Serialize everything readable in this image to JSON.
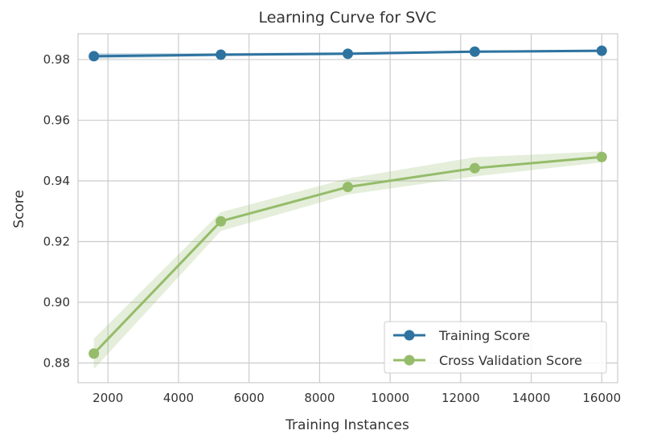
{
  "chart_data": {
    "type": "line",
    "title": "Learning Curve for SVC",
    "xlabel": "Training Instances",
    "ylabel": "Score",
    "xlim": [
      1150,
      16450
    ],
    "ylim": [
      0.8735,
      0.9885
    ],
    "xticks": [
      2000,
      4000,
      6000,
      8000,
      10000,
      12000,
      14000,
      16000
    ],
    "yticks": [
      0.88,
      0.9,
      0.92,
      0.94,
      0.96,
      0.98
    ],
    "ytick_labels": [
      "0.88",
      "0.90",
      "0.92",
      "0.94",
      "0.96",
      "0.98"
    ],
    "x": [
      1600,
      5200,
      8800,
      12400,
      16000
    ],
    "series": [
      {
        "name": "Training Score",
        "color": "#2E73A0",
        "values": [
          0.9811,
          0.9816,
          0.9819,
          0.9826,
          0.9829
        ],
        "band_lower": [
          0.9803,
          0.9811,
          0.9815,
          0.9822,
          0.9824
        ],
        "band_upper": [
          0.9821,
          0.9821,
          0.9825,
          0.983,
          0.9832
        ]
      },
      {
        "name": "Cross Validation Score",
        "color": "#95BC6A",
        "values": [
          0.8831,
          0.9267,
          0.938,
          0.9442,
          0.9479
        ],
        "band_lower": [
          0.878,
          0.9235,
          0.9355,
          0.9415,
          0.9461
        ],
        "band_upper": [
          0.888,
          0.9297,
          0.9408,
          0.9478,
          0.9497
        ]
      }
    ],
    "grid": true,
    "legend_position": "bottom-right"
  }
}
